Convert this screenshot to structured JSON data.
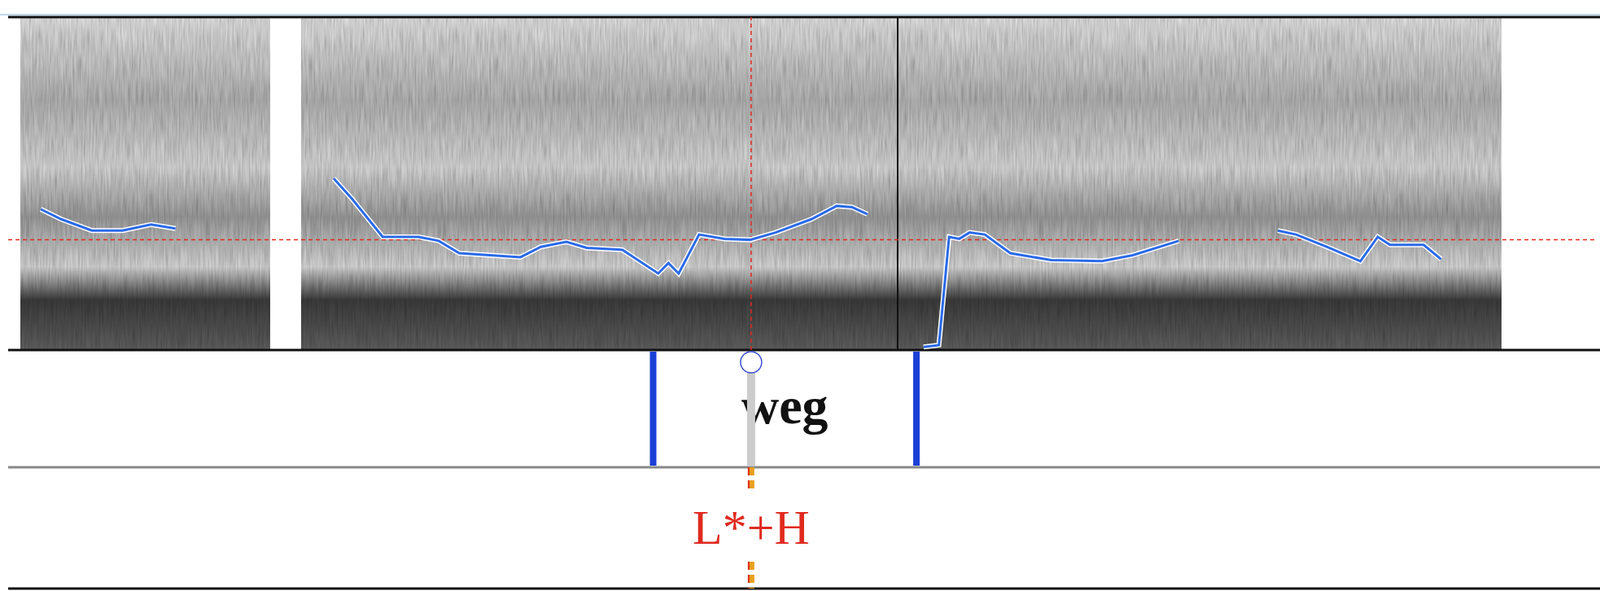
{
  "chart_data": {
    "type": "line",
    "x": [
      32,
      52,
      82,
      112,
      140,
      164,
      240,
      319,
      337,
      367,
      402,
      422,
      442,
      472,
      502,
      522,
      547,
      567,
      602,
      637,
      647,
      657,
      677,
      702,
      727,
      752,
      787,
      812,
      827,
      842,
      870,
      897,
      912,
      922,
      932,
      942,
      957,
      982,
      1022,
      1072,
      1102,
      1147,
      1200,
      1244,
      1262,
      1292,
      1325,
      1342,
      1354,
      1387,
      1404
    ],
    "values": [
      42.3,
      39.3,
      35.9,
      35.9,
      37.7,
      36.5,
      null,
      51.5,
      45.4,
      34.0,
      34.0,
      32.8,
      29.1,
      28.5,
      27.9,
      31.0,
      32.5,
      30.7,
      30.1,
      23.0,
      26.1,
      23.0,
      34.7,
      33.4,
      33.1,
      35.3,
      39.3,
      43.3,
      42.9,
      40.8,
      null,
      0.9,
      1.5,
      34.0,
      33.4,
      35.3,
      34.7,
      29.1,
      27.0,
      26.7,
      28.5,
      32.8,
      null,
      35.9,
      34.7,
      31.0,
      26.7,
      34.0,
      31.6,
      31.6,
      27.3
    ],
    "color": "#2a6ae8",
    "xlim": [
      0,
      1555
    ],
    "ylim": [
      0,
      100
    ],
    "tick_labels": false,
    "cursor": {
      "x": 728,
      "y": 33.1
    },
    "tiers": [
      {
        "intervals": [
          {
            "start": 632,
            "end": 890,
            "label": "weg"
          }
        ]
      },
      {
        "points": [
          {
            "time": 728,
            "label": "L*+H"
          }
        ]
      }
    ]
  }
}
